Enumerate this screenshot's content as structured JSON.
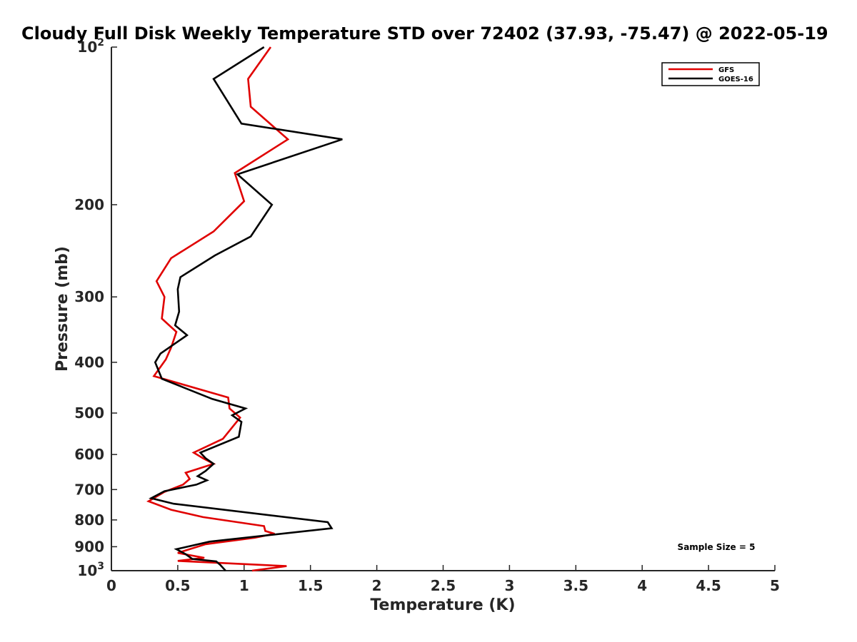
{
  "chart_data": {
    "type": "line",
    "title": "Cloudy Full Disk Weekly Temperature STD over 72402 (37.93, -75.47) @ 2022-05-19",
    "xlabel": "Temperature (K)",
    "ylabel": "Pressure (mb)",
    "xlim": [
      0,
      5
    ],
    "ylim": [
      100,
      1000
    ],
    "y_scale": "log",
    "y_reversed": true,
    "grid": false,
    "legend_position": "top-right",
    "x_ticks": [
      0,
      0.5,
      1,
      1.5,
      2,
      2.5,
      3,
      3.5,
      4,
      4.5,
      5
    ],
    "x_tick_labels": [
      "0",
      "0.5",
      "1",
      "1.5",
      "2",
      "2.5",
      "3",
      "3.5",
      "4",
      "4.5",
      "5"
    ],
    "y_ticks": [
      100,
      200,
      300,
      400,
      500,
      600,
      700,
      800,
      900,
      1000
    ],
    "y_tick_labels": [
      {
        "base": "10",
        "sup": "2"
      },
      {
        "base": "200",
        "sup": ""
      },
      {
        "base": "300",
        "sup": ""
      },
      {
        "base": "400",
        "sup": ""
      },
      {
        "base": "500",
        "sup": ""
      },
      {
        "base": "600",
        "sup": ""
      },
      {
        "base": "700",
        "sup": ""
      },
      {
        "base": "800",
        "sup": ""
      },
      {
        "base": "900",
        "sup": ""
      },
      {
        "base": "10",
        "sup": "3"
      }
    ],
    "series": [
      {
        "name": "GFS",
        "color": "#e00000",
        "points": [
          [
            1.2,
            100
          ],
          [
            1.03,
            115
          ],
          [
            1.05,
            130
          ],
          [
            1.33,
            150
          ],
          [
            0.93,
            174
          ],
          [
            1.0,
            197
          ],
          [
            0.77,
            225
          ],
          [
            0.45,
            253
          ],
          [
            0.34,
            280
          ],
          [
            0.4,
            300
          ],
          [
            0.38,
            330
          ],
          [
            0.49,
            350
          ],
          [
            0.45,
            375
          ],
          [
            0.41,
            395
          ],
          [
            0.32,
            425
          ],
          [
            0.88,
            467
          ],
          [
            0.89,
            490
          ],
          [
            0.97,
            510
          ],
          [
            0.84,
            560
          ],
          [
            0.62,
            595
          ],
          [
            0.69,
            610
          ],
          [
            0.77,
            625
          ],
          [
            0.56,
            650
          ],
          [
            0.59,
            668
          ],
          [
            0.54,
            685
          ],
          [
            0.4,
            707
          ],
          [
            0.28,
            737
          ],
          [
            0.45,
            765
          ],
          [
            0.69,
            790
          ],
          [
            1.15,
            822
          ],
          [
            1.16,
            840
          ],
          [
            1.23,
            850
          ],
          [
            1.08,
            865
          ],
          [
            0.71,
            890
          ],
          [
            0.5,
            925
          ],
          [
            0.7,
            945
          ],
          [
            0.5,
            958
          ],
          [
            1.32,
            980
          ],
          [
            1.06,
            1000
          ]
        ]
      },
      {
        "name": "GOES-16",
        "color": "#000000",
        "points": [
          [
            1.15,
            100
          ],
          [
            0.77,
            115
          ],
          [
            0.98,
            140
          ],
          [
            1.74,
            150
          ],
          [
            0.95,
            175
          ],
          [
            1.21,
            200
          ],
          [
            1.05,
            230
          ],
          [
            0.78,
            250
          ],
          [
            0.52,
            275
          ],
          [
            0.5,
            290
          ],
          [
            0.51,
            320
          ],
          [
            0.48,
            340
          ],
          [
            0.57,
            355
          ],
          [
            0.37,
            385
          ],
          [
            0.33,
            400
          ],
          [
            0.38,
            430
          ],
          [
            0.76,
            470
          ],
          [
            1.01,
            490
          ],
          [
            0.91,
            505
          ],
          [
            0.98,
            520
          ],
          [
            0.96,
            555
          ],
          [
            0.67,
            595
          ],
          [
            0.71,
            610
          ],
          [
            0.77,
            625
          ],
          [
            0.71,
            645
          ],
          [
            0.65,
            660
          ],
          [
            0.72,
            672
          ],
          [
            0.64,
            685
          ],
          [
            0.4,
            705
          ],
          [
            0.3,
            727
          ],
          [
            0.47,
            745
          ],
          [
            1.63,
            808
          ],
          [
            1.66,
            830
          ],
          [
            0.74,
            880
          ],
          [
            0.49,
            910
          ],
          [
            0.56,
            930
          ],
          [
            0.61,
            950
          ],
          [
            0.79,
            960
          ],
          [
            0.82,
            975
          ],
          [
            0.86,
            1000
          ]
        ]
      }
    ],
    "annotations": [
      {
        "text": "Sample Size = 5"
      }
    ]
  }
}
